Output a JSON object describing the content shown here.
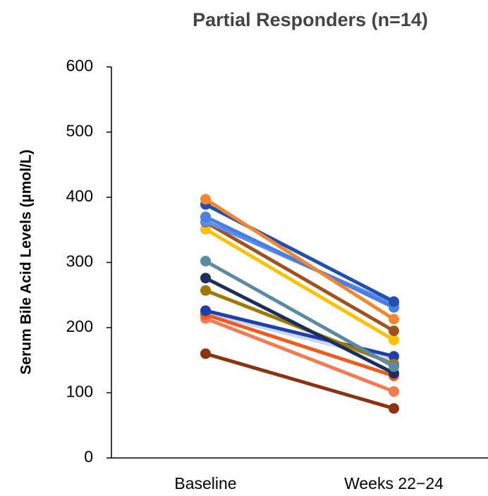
{
  "chart_data": {
    "type": "line",
    "title": "Partial Responders (n=14)",
    "y_label": "Serum Bile Acid Levels (µmol/L)",
    "categories": [
      "Baseline",
      "Weeks 22−24"
    ],
    "ylim": [
      0,
      600
    ],
    "yticks": [
      0,
      100,
      200,
      300,
      400,
      500,
      600
    ],
    "series": [
      {
        "color": "#C9D7F0",
        "values": [
          222,
          150
        ]
      },
      {
        "color": "#8B3210",
        "values": [
          160,
          76
        ]
      },
      {
        "color": "#F47A50",
        "values": [
          214,
          102
        ]
      },
      {
        "color": "#F05A1E",
        "values": [
          220,
          126
        ]
      },
      {
        "color": "#1F40A8",
        "values": [
          226,
          156
        ]
      },
      {
        "color": "#A07800",
        "values": [
          257,
          144
        ]
      },
      {
        "color": "#1B2F5E",
        "values": [
          276,
          130
        ]
      },
      {
        "color": "#5B8AA5",
        "values": [
          302,
          140
        ]
      },
      {
        "color": "#FFC000",
        "values": [
          351,
          181
        ]
      },
      {
        "color": "#A0521E",
        "values": [
          362,
          195
        ]
      },
      {
        "color": "#5B8DEF",
        "values": [
          363,
          236
        ]
      },
      {
        "color": "#4A7FE0",
        "values": [
          370,
          231
        ]
      },
      {
        "color": "#1F4FB0",
        "values": [
          389,
          240
        ]
      },
      {
        "color": "#F5852F",
        "values": [
          397,
          213
        ]
      }
    ]
  }
}
